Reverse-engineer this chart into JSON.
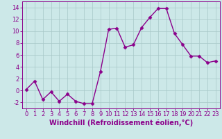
{
  "x": [
    0,
    1,
    2,
    3,
    4,
    5,
    6,
    7,
    8,
    9,
    10,
    11,
    12,
    13,
    14,
    15,
    16,
    17,
    18,
    19,
    20,
    21,
    22,
    23
  ],
  "y": [
    0.2,
    1.6,
    -1.5,
    -0.2,
    -1.8,
    -0.6,
    -1.8,
    -2.2,
    -2.2,
    3.2,
    10.3,
    10.5,
    7.3,
    7.7,
    10.6,
    12.3,
    13.8,
    13.8,
    9.6,
    7.7,
    5.8,
    5.8,
    4.7,
    5.0
  ],
  "line_color": "#8B008B",
  "marker": "D",
  "marker_size": 2.5,
  "background_color": "#cce8e8",
  "grid_color": "#a8c8c8",
  "xlabel": "Windchill (Refroidissement éolien,°C)",
  "ylabel": "",
  "ylim": [
    -3,
    15
  ],
  "xlim": [
    -0.5,
    23.5
  ],
  "yticks": [
    -2,
    0,
    2,
    4,
    6,
    8,
    10,
    12,
    14
  ],
  "xticks": [
    0,
    1,
    2,
    3,
    4,
    5,
    6,
    7,
    8,
    9,
    10,
    11,
    12,
    13,
    14,
    15,
    16,
    17,
    18,
    19,
    20,
    21,
    22,
    23
  ],
  "tick_label_size": 6,
  "xlabel_size": 7,
  "line_width": 1.0
}
